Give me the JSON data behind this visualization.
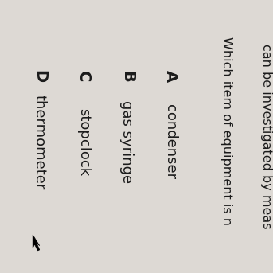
{
  "background_color": "#ddd9d4",
  "top_text_line1": "can be investigated by meas",
  "top_text_line2": "Which item of equipment is n",
  "options": [
    {
      "label": "A",
      "text": "condenser"
    },
    {
      "label": "B",
      "text": "gas syringe"
    },
    {
      "label": "C",
      "text": "stopclock"
    },
    {
      "label": "D",
      "text": "thermometer"
    }
  ],
  "font_size_label": 14,
  "font_size_text": 13,
  "font_size_top": 11.5,
  "text_color": "#1a1a1a",
  "rotation": -90
}
